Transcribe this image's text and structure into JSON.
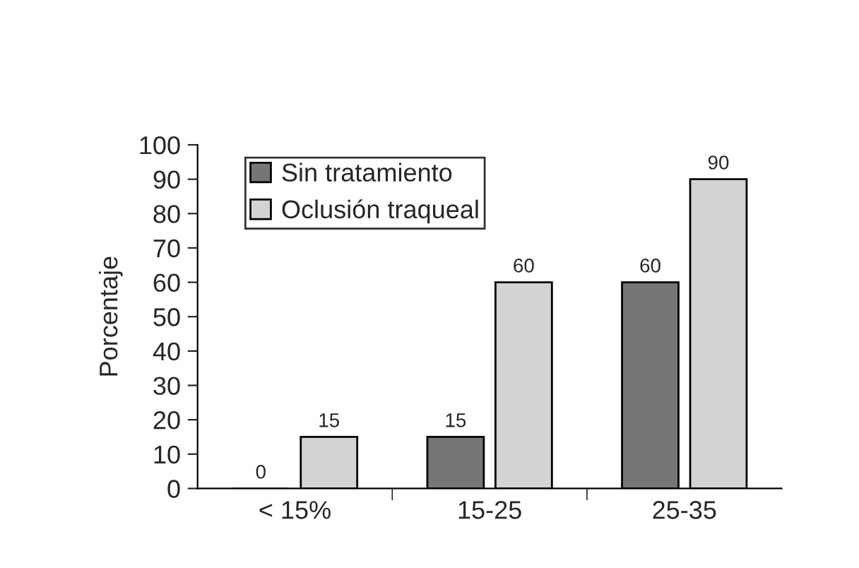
{
  "chart_data": {
    "type": "bar",
    "ylabel": "Porcentaje",
    "categories": [
      "< 15%",
      "15-25",
      "25-35"
    ],
    "series": [
      {
        "name": "Sin tratamiento",
        "color": "#767676",
        "values": [
          0,
          15,
          60
        ]
      },
      {
        "name": "Oclusión traqueal",
        "color": "#d3d3d3",
        "values": [
          15,
          60,
          90
        ]
      }
    ],
    "ylim": [
      0,
      100
    ],
    "yticks": [
      0,
      10,
      20,
      30,
      40,
      50,
      60,
      70,
      80,
      90,
      100
    ],
    "data_labels": true,
    "legend": "top left",
    "grid": false
  }
}
